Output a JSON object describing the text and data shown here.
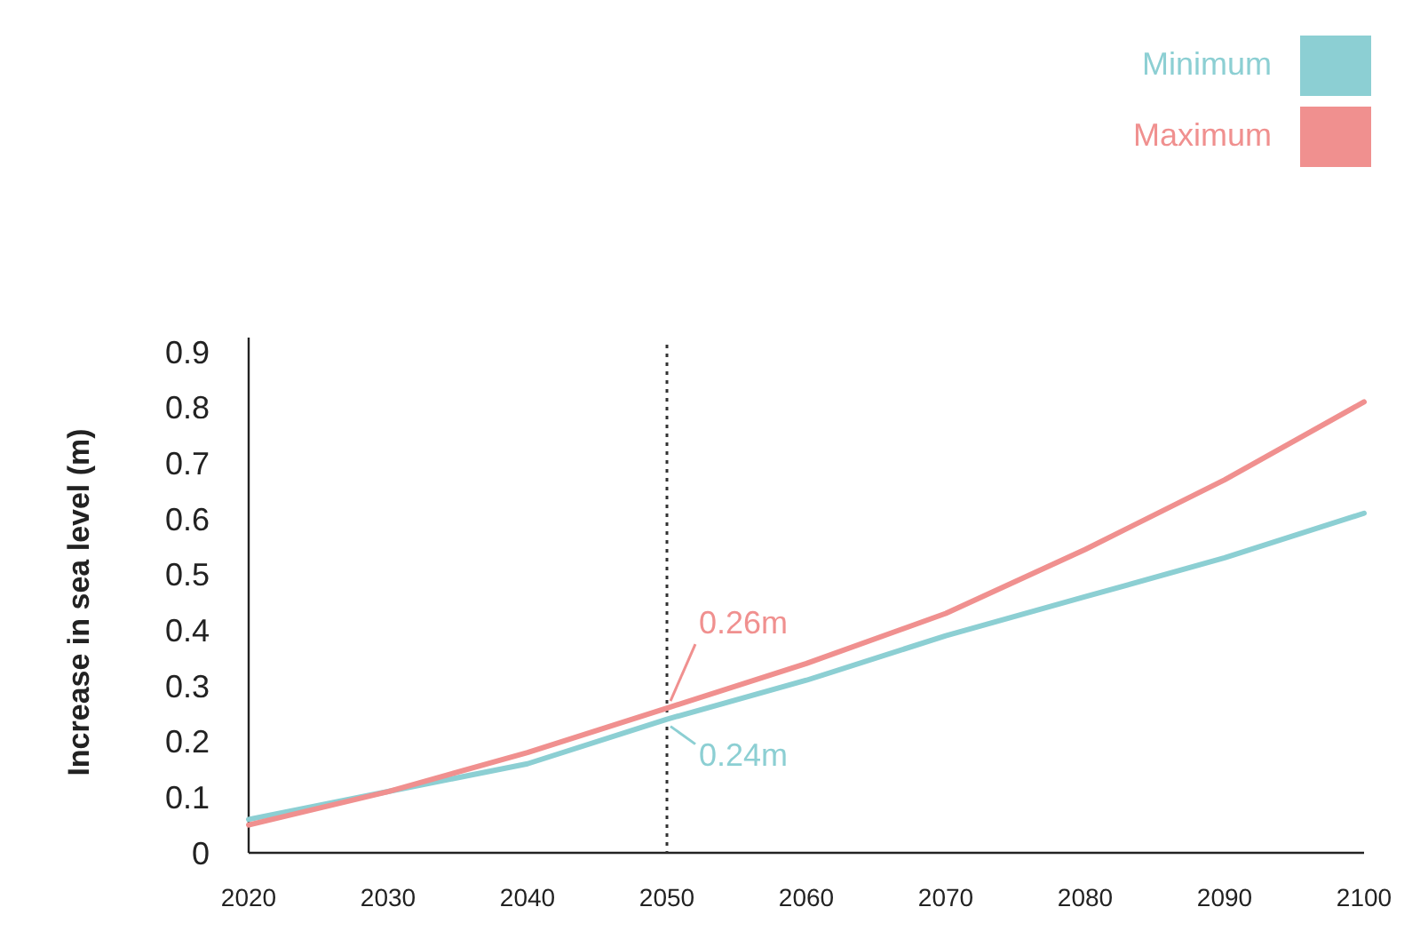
{
  "chart_data": {
    "type": "line",
    "ylabel": "Increase in sea level (m)",
    "x": [
      2020,
      2030,
      2040,
      2050,
      2060,
      2070,
      2080,
      2090,
      2100
    ],
    "series": [
      {
        "name": "Minimum",
        "color": "#8ccfd3",
        "values": [
          0.06,
          0.11,
          0.16,
          0.24,
          0.31,
          0.39,
          0.46,
          0.53,
          0.61
        ]
      },
      {
        "name": "Maximum",
        "color": "#f0908f",
        "values": [
          0.05,
          0.11,
          0.18,
          0.26,
          0.34,
          0.43,
          0.545,
          0.67,
          0.81
        ]
      }
    ],
    "xlim": [
      2020,
      2100
    ],
    "xticks": [
      2020,
      2030,
      2040,
      2050,
      2060,
      2070,
      2080,
      2090,
      2100
    ],
    "ylim": [
      0,
      0.9
    ],
    "yticks": [
      0,
      0.1,
      0.2,
      0.3,
      0.4,
      0.5,
      0.6,
      0.7,
      0.8,
      0.9
    ],
    "ref_lines": [
      {
        "axis": "x",
        "value": 2050,
        "color": "#333333",
        "line_style": "dotted"
      }
    ],
    "annotations": [
      {
        "text": "0.26m",
        "x": 2050,
        "y": 0.26
      },
      {
        "text": "0.24m",
        "x": 2050,
        "y": 0.24
      }
    ],
    "legend": "top right",
    "grid": false,
    "marker": "none",
    "line_style": "solid"
  }
}
